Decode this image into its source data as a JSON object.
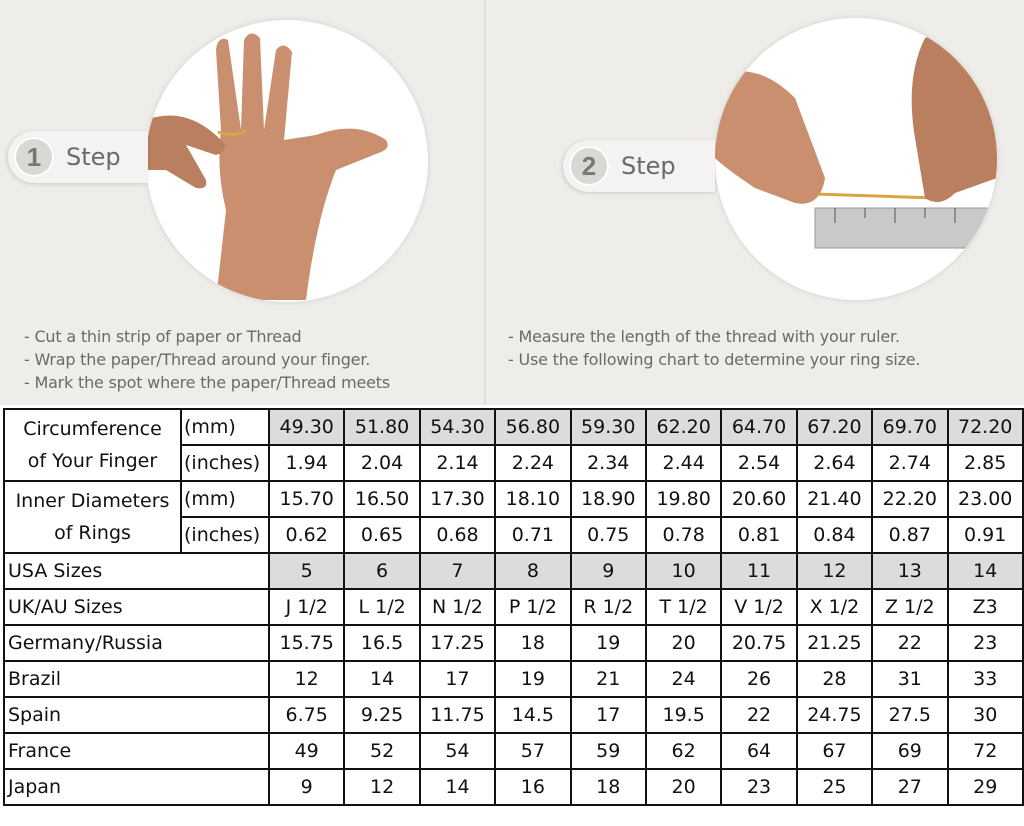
{
  "steps": [
    {
      "number": "1",
      "label": "Step",
      "instructions": [
        "- Cut a thin strip of paper or Thread",
        "- Wrap the paper/Thread around your finger.",
        "- Mark the spot where the paper/Thread meets"
      ]
    },
    {
      "number": "2",
      "label": "Step",
      "instructions": [
        "- Measure the length of the thread with your ruler.",
        "- Use the following chart to determine your ring size."
      ]
    }
  ],
  "colors": {
    "highlight_cell": "#dcdcdc",
    "panel_bg": "#efede9",
    "skin": "#c98f6e"
  },
  "table": {
    "circumference": {
      "label_lines": [
        "Circumference",
        "of Your Finger"
      ],
      "mm_unit": "(mm)",
      "in_unit": "(inches)",
      "mm": [
        "49.30",
        "51.80",
        "54.30",
        "56.80",
        "59.30",
        "62.20",
        "64.70",
        "67.20",
        "69.70",
        "72.20"
      ],
      "inches": [
        "1.94",
        "2.04",
        "2.14",
        "2.24",
        "2.34",
        "2.44",
        "2.54",
        "2.64",
        "2.74",
        "2.85"
      ]
    },
    "diameter": {
      "label_lines": [
        "Inner Diameters",
        "of Rings"
      ],
      "mm_unit": "(mm)",
      "in_unit": "(inches)",
      "mm": [
        "15.70",
        "16.50",
        "17.30",
        "18.10",
        "18.90",
        "19.80",
        "20.60",
        "21.40",
        "22.20",
        "23.00"
      ],
      "inches": [
        "0.62",
        "0.65",
        "0.68",
        "0.71",
        "0.75",
        "0.78",
        "0.81",
        "0.84",
        "0.87",
        "0.91"
      ]
    },
    "rows": [
      {
        "label": "USA Sizes",
        "values": [
          "5",
          "6",
          "7",
          "8",
          "9",
          "10",
          "11",
          "12",
          "13",
          "14"
        ],
        "highlight": true
      },
      {
        "label": "UK/AU Sizes",
        "values": [
          "J 1/2",
          "L 1/2",
          "N 1/2",
          "P 1/2",
          "R 1/2",
          "T 1/2",
          "V 1/2",
          "X 1/2",
          "Z 1/2",
          "Z3"
        ]
      },
      {
        "label": "Germany/Russia",
        "values": [
          "15.75",
          "16.5",
          "17.25",
          "18",
          "19",
          "20",
          "20.75",
          "21.25",
          "22",
          "23"
        ]
      },
      {
        "label": "Brazil",
        "values": [
          "12",
          "14",
          "17",
          "19",
          "21",
          "24",
          "26",
          "28",
          "31",
          "33"
        ]
      },
      {
        "label": "Spain",
        "values": [
          "6.75",
          "9.25",
          "11.75",
          "14.5",
          "17",
          "19.5",
          "22",
          "24.75",
          "27.5",
          "30"
        ]
      },
      {
        "label": "France",
        "values": [
          "49",
          "52",
          "54",
          "57",
          "59",
          "62",
          "64",
          "67",
          "69",
          "72"
        ]
      },
      {
        "label": "Japan",
        "values": [
          "9",
          "12",
          "14",
          "16",
          "18",
          "20",
          "23",
          "25",
          "27",
          "29"
        ]
      }
    ]
  }
}
